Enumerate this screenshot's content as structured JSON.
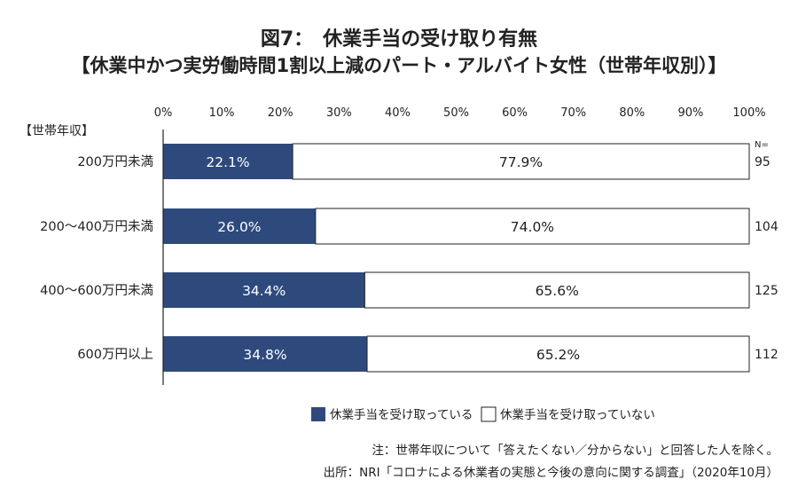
{
  "figure": {
    "title_line1": "図7：　休業手当の受け取り有無",
    "title_line2": "【休業中かつ実労働時間1割以上減のパート・アルバイト女性（世帯年収別）】",
    "note": "注：世帯年収について「答えたくない／分からない」と回答した人を除く。",
    "source": "出所：NRI「コロナによる休業者の実態と今後の意向に関する調査」（2020年10月）"
  },
  "chart_data": {
    "type": "bar",
    "orientation": "horizontal-stacked-100",
    "category_header": "【世帯年収】",
    "categories": [
      "200万円未満",
      "200～400万円未満",
      "400～600万円未満",
      "600万円以上"
    ],
    "series": [
      {
        "name": "休業手当を受け取っている",
        "values": [
          22.1,
          26.0,
          34.4,
          34.8
        ],
        "color": "#2e4a7d"
      },
      {
        "name": "休業手当を受け取っていない",
        "values": [
          77.9,
          74.0,
          65.6,
          65.2
        ],
        "color": "#ffffff"
      }
    ],
    "value_labels": [
      [
        "22.1%",
        "77.9%"
      ],
      [
        "26.0%",
        "74.0%"
      ],
      [
        "34.4%",
        "65.6%"
      ],
      [
        "34.8%",
        "65.2%"
      ]
    ],
    "n_header": "N=",
    "n_values": [
      "95",
      "104",
      "125",
      "112"
    ],
    "x_ticks": [
      "0%",
      "10%",
      "20%",
      "30%",
      "40%",
      "50%",
      "60%",
      "70%",
      "80%",
      "90%",
      "100%"
    ],
    "xlim": [
      0,
      100
    ],
    "grid": false,
    "legend_position": "bottom"
  }
}
